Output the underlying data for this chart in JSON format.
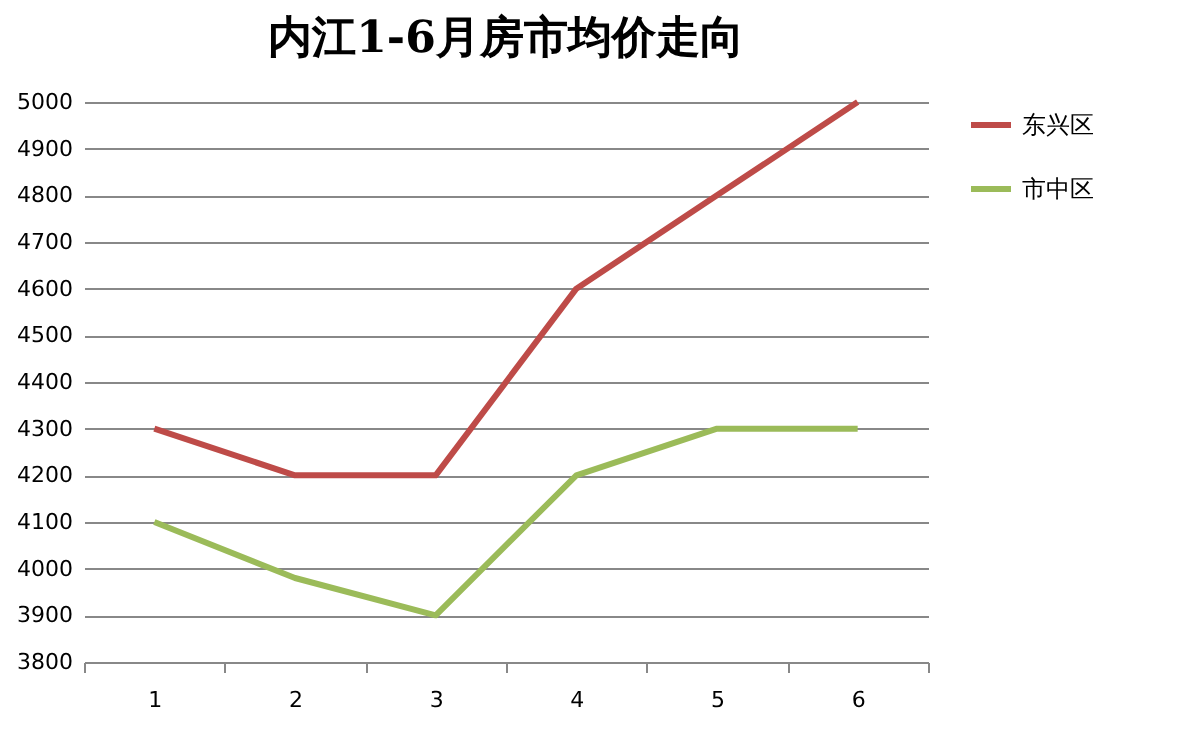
{
  "chart_data": {
    "type": "line",
    "title": "内江1-6月房市均价走向",
    "categories": [
      "1",
      "2",
      "3",
      "4",
      "5",
      "6"
    ],
    "series": [
      {
        "name": "东兴区",
        "color": "#be4b48",
        "values": [
          4300,
          4200,
          4200,
          4600,
          4800,
          5000
        ]
      },
      {
        "name": "市中区",
        "color": "#9bbb59",
        "values": [
          4100,
          3980,
          3900,
          4200,
          4300,
          4300
        ]
      }
    ],
    "ylim": [
      3800,
      5000
    ],
    "yticks": [
      3800,
      3900,
      4000,
      4100,
      4200,
      4300,
      4400,
      4500,
      4600,
      4700,
      4800,
      4900,
      5000
    ],
    "grid": "y",
    "legend": "right",
    "marker": "none",
    "line_style": "solid"
  }
}
